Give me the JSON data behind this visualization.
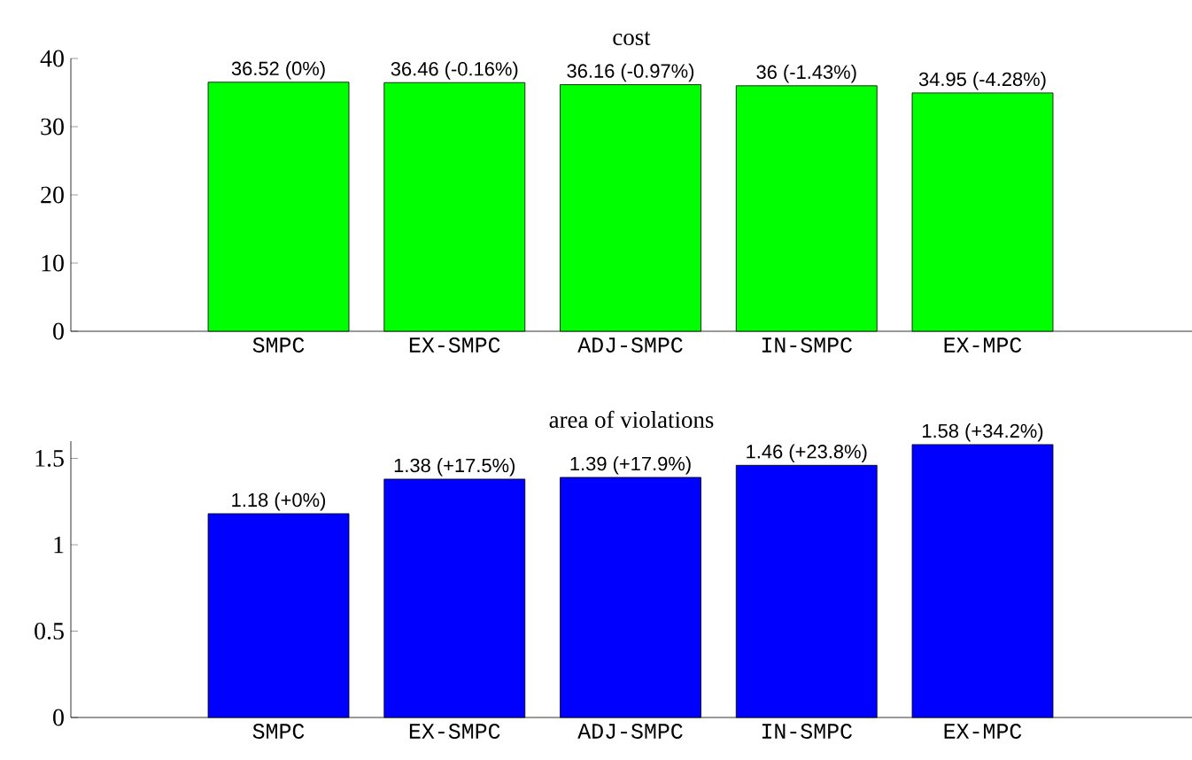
{
  "chart_data": [
    {
      "type": "bar",
      "title": "cost",
      "categories": [
        "SMPC",
        "EX-SMPC",
        "ADJ-SMPC",
        "IN-SMPC",
        "EX-MPC"
      ],
      "values": [
        36.52,
        36.46,
        36.16,
        36,
        34.95
      ],
      "color": "#00ff00",
      "value_labels": [
        "36.52 (0%)",
        "36.46 (-0.16%)",
        "36.16 (-0.97%)",
        "36 (-1.43%)",
        "34.95 (-4.28%)"
      ],
      "ylim": [
        0,
        40
      ],
      "yticks": [
        0,
        10,
        20,
        30,
        40
      ]
    },
    {
      "type": "bar",
      "title": "area of violations",
      "categories": [
        "SMPC",
        "EX-SMPC",
        "ADJ-SMPC",
        "IN-SMPC",
        "EX-MPC"
      ],
      "values": [
        1.18,
        1.38,
        1.39,
        1.46,
        1.58
      ],
      "color": "#0000ff",
      "value_labels": [
        "1.18 (+0%)",
        "1.38 (+17.5%)",
        "1.39 (+17.9%)",
        "1.46 (+23.8%)",
        "1.58 (+34.2%)"
      ],
      "ylim": [
        0,
        1.6
      ],
      "yticks": [
        0,
        0.5,
        1,
        1.5
      ]
    }
  ]
}
